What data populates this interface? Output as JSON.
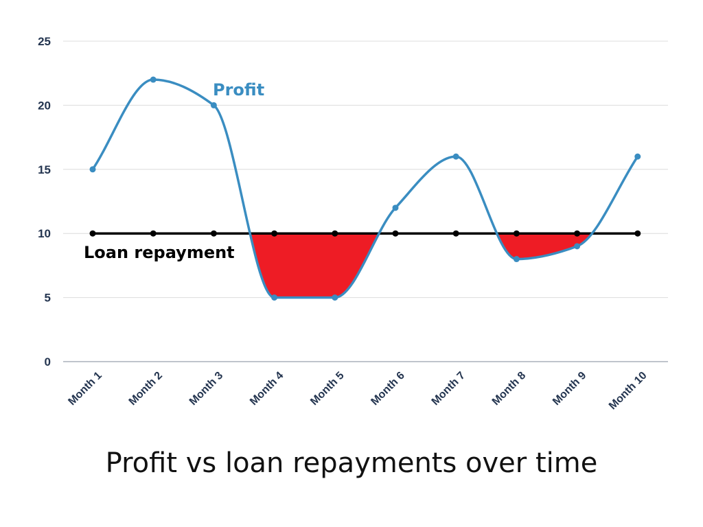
{
  "chart_data": {
    "type": "line",
    "title": "Profit vs loan repayments over time",
    "categories": [
      "Month 1",
      "Month 2",
      "Month 3",
      "Month 4",
      "Month 5",
      "Month 6",
      "Month 7",
      "Month 8",
      "Month 9",
      "Month 10"
    ],
    "series": [
      {
        "name": "Profit",
        "color": "#3a8dc1",
        "values": [
          15,
          22,
          20,
          5,
          5,
          12,
          16,
          8,
          9,
          16
        ]
      },
      {
        "name": "Loan repayment",
        "color": "#000000",
        "values": [
          10,
          10,
          10,
          10,
          10,
          10,
          10,
          10,
          10,
          10
        ]
      }
    ],
    "shortfall_fill_color": "#ee1c25",
    "ylim": [
      0,
      25
    ],
    "yticks": [
      0,
      5,
      10,
      15,
      20,
      25
    ],
    "grid": true,
    "legend": "inline labels"
  }
}
